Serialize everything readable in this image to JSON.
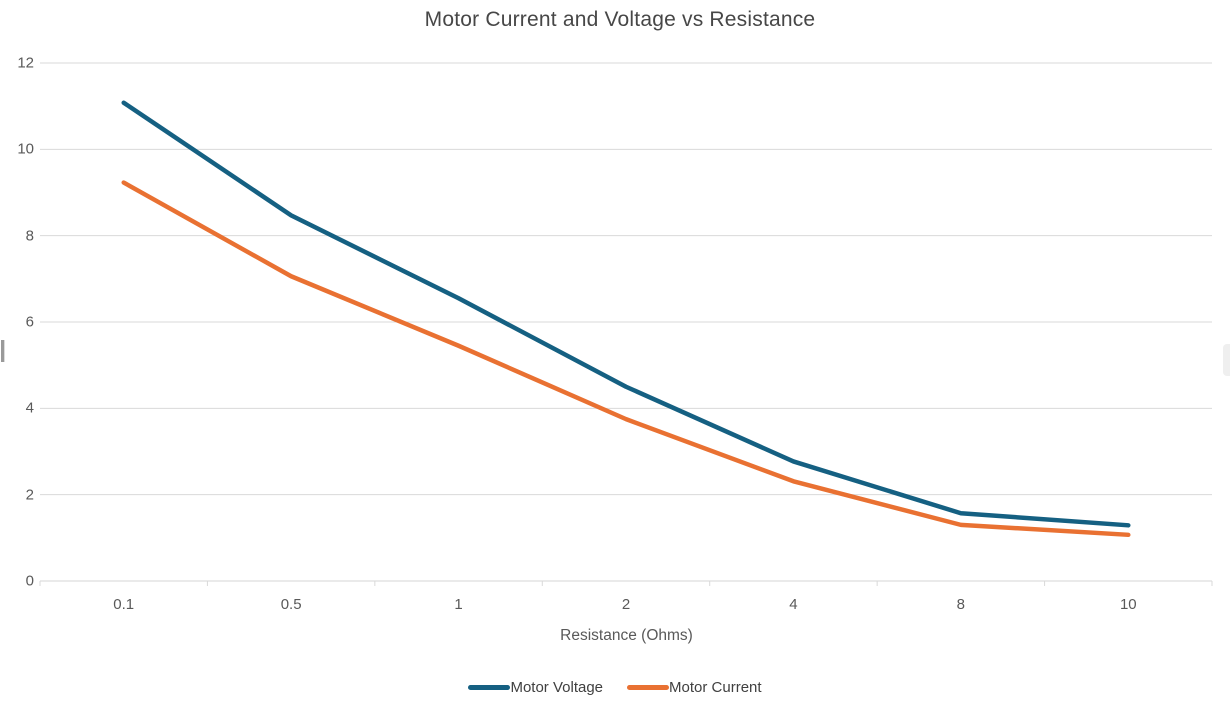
{
  "title": "Motor Current and Voltage vs Resistance",
  "chart_data": {
    "type": "line",
    "categories": [
      "0.1",
      "0.5",
      "1",
      "2",
      "4",
      "8",
      "10"
    ],
    "series": [
      {
        "name": "Motor Voltage",
        "color": "#156082",
        "values": [
          11.08,
          8.47,
          6.55,
          4.5,
          2.77,
          1.57,
          1.29
        ]
      },
      {
        "name": "Motor Current",
        "color": "#E97132",
        "values": [
          9.23,
          7.06,
          5.45,
          3.75,
          2.31,
          1.3,
          1.07
        ]
      }
    ],
    "title": "Motor Current and Voltage vs Resistance",
    "xlabel": "Resistance (Ohms)",
    "ylabel": "",
    "ylim": [
      0,
      12
    ],
    "yticks": [
      0,
      2,
      4,
      6,
      8,
      10,
      12
    ],
    "grid": true,
    "legend_position": "bottom",
    "gridline_color": "#d9d9d9",
    "axis_line_color": "#d6d6d6",
    "tick_label_color": "#595959"
  }
}
